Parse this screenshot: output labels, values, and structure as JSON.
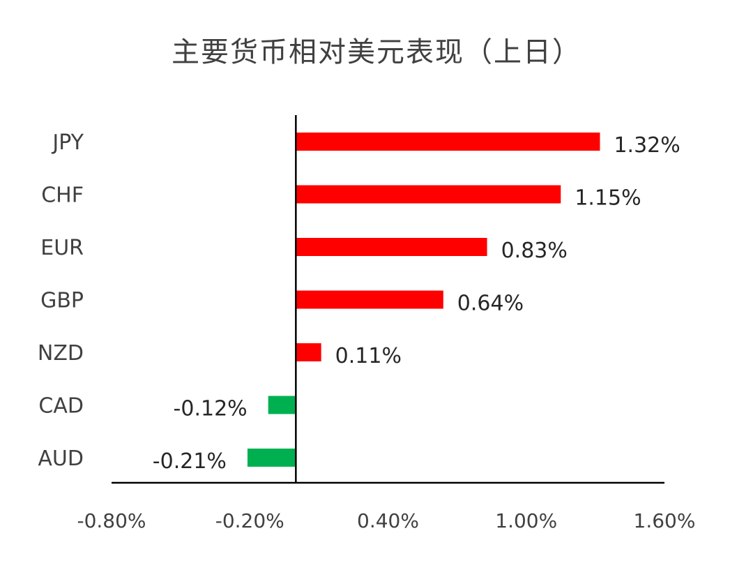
{
  "chart_data": {
    "type": "bar",
    "orientation": "horizontal",
    "title": "主要货币相对美元表现（上日）",
    "categories": [
      "JPY",
      "CHF",
      "EUR",
      "GBP",
      "NZD",
      "CAD",
      "AUD"
    ],
    "values": [
      1.32,
      1.15,
      0.83,
      0.64,
      0.11,
      -0.12,
      -0.21
    ],
    "value_labels": [
      "1.32%",
      "1.15%",
      "0.83%",
      "0.64%",
      "0.11%",
      "-0.12%",
      "-0.21%"
    ],
    "xlim": [
      -0.8,
      1.6
    ],
    "x_ticks": [
      -0.8,
      -0.2,
      0.4,
      1.0,
      1.6
    ],
    "x_tick_labels": [
      "-0.80%",
      "-0.20%",
      "0.40%",
      "1.00%",
      "1.60%"
    ],
    "grid": false,
    "legend": "none",
    "colors": {
      "positive": "#ff0000",
      "negative": "#00b050",
      "axis": "#000000",
      "text": "#404040"
    }
  }
}
